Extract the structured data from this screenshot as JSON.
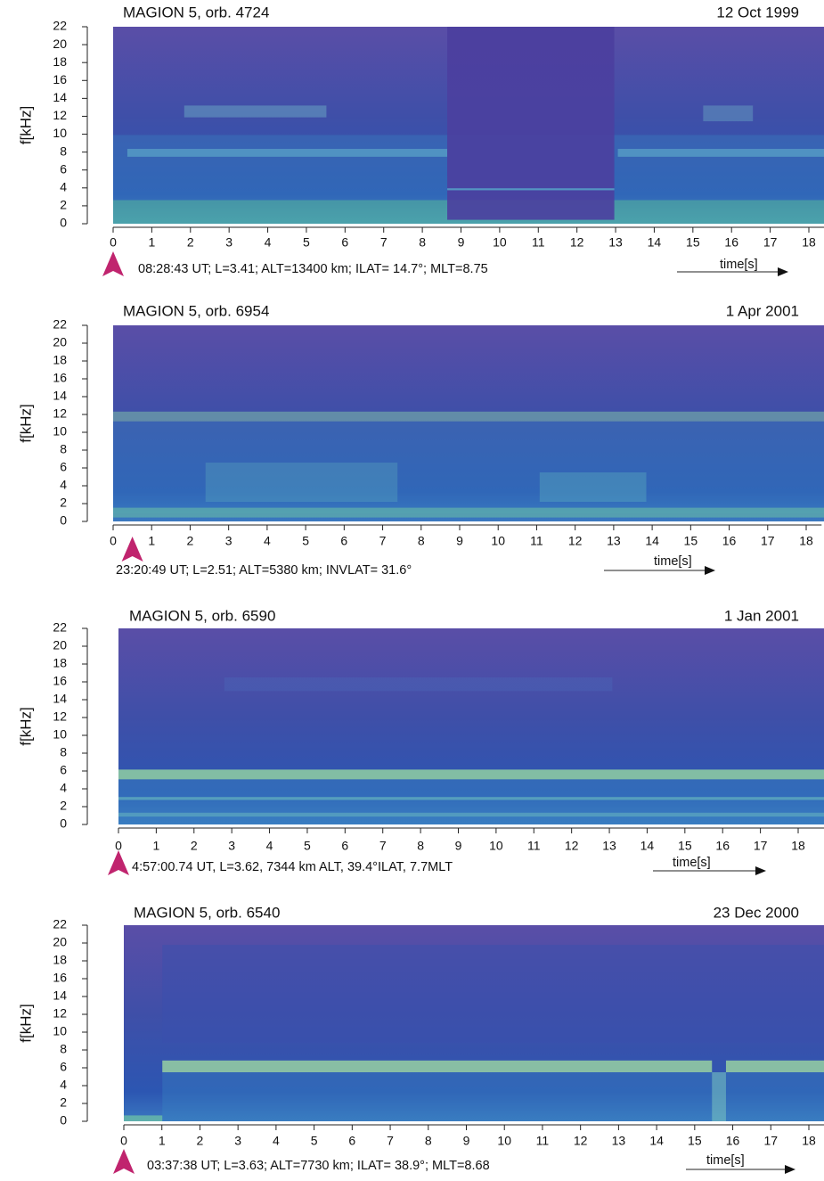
{
  "chart_data": [
    {
      "type": "spectrogram",
      "title": "MAGION 5, orb. 4724",
      "date": "12 Oct 1999",
      "ylabel": "f[kHz]",
      "xlabel": "time[s]",
      "annotation": "08:28:43 UT; L=3.41; ALT=13400 km; ILAT= 14.7°; MLT=8.75",
      "xlim": [
        0,
        18.4
      ],
      "xticks": [
        0,
        1,
        2,
        3,
        4,
        5,
        6,
        7,
        8,
        9,
        10,
        11,
        12,
        13,
        14,
        15,
        16,
        17,
        18
      ],
      "ylim": [
        0,
        22
      ],
      "yticks": [
        0,
        2,
        4,
        6,
        8,
        10,
        12,
        14,
        16,
        18,
        20,
        22
      ],
      "marker_x": 0
    },
    {
      "type": "spectrogram",
      "title": "MAGION 5, orb. 6954",
      "date": "1 Apr 2001",
      "ylabel": "f[kHz]",
      "xlabel": "time[s]",
      "annotation": "23:20:49 UT; L=2.51; ALT=5380 km; INVLAT= 31.6°",
      "xlim": [
        0,
        18.4
      ],
      "xticks": [
        0,
        1,
        2,
        3,
        4,
        5,
        6,
        7,
        8,
        9,
        10,
        11,
        12,
        13,
        14,
        15,
        16,
        17,
        18
      ],
      "ylim": [
        0,
        22
      ],
      "yticks": [
        0,
        2,
        4,
        6,
        8,
        10,
        12,
        14,
        16,
        18,
        20,
        22
      ],
      "marker_x": 0.5
    },
    {
      "type": "spectrogram",
      "title": "MAGION 5, orb. 6590",
      "date": "1 Jan 2001",
      "ylabel": "f[kHz]",
      "xlabel": "time[s]",
      "annotation": "4:57:00.74 UT, L=3.62, 7344 km ALT, 39.4°ILAT, 7.7MLT",
      "xlim": [
        0,
        18.7
      ],
      "xticks": [
        0,
        1,
        2,
        3,
        4,
        5,
        6,
        7,
        8,
        9,
        10,
        11,
        12,
        13,
        14,
        15,
        16,
        17,
        18
      ],
      "ylim": [
        0,
        22
      ],
      "yticks": [
        0,
        2,
        4,
        6,
        8,
        10,
        12,
        14,
        16,
        18,
        20,
        22
      ],
      "marker_x": 0
    },
    {
      "type": "spectrogram",
      "title": "MAGION 5, orb. 6540",
      "date": "23 Dec 2000",
      "ylabel": "f[kHz]",
      "xlabel": "time[s]",
      "annotation": "03:37:38 UT; L=3.63; ALT=7730 km; ILAT= 38.9°; MLT=8.68",
      "xlim": [
        0,
        18.4
      ],
      "xticks": [
        0,
        1,
        2,
        3,
        4,
        5,
        6,
        7,
        8,
        9,
        10,
        11,
        12,
        13,
        14,
        15,
        16,
        17,
        18
      ],
      "ylim": [
        0,
        22
      ],
      "yticks": [
        0,
        2,
        4,
        6,
        8,
        10,
        12,
        14,
        16,
        18,
        20,
        22
      ],
      "marker_x": 0
    }
  ]
}
